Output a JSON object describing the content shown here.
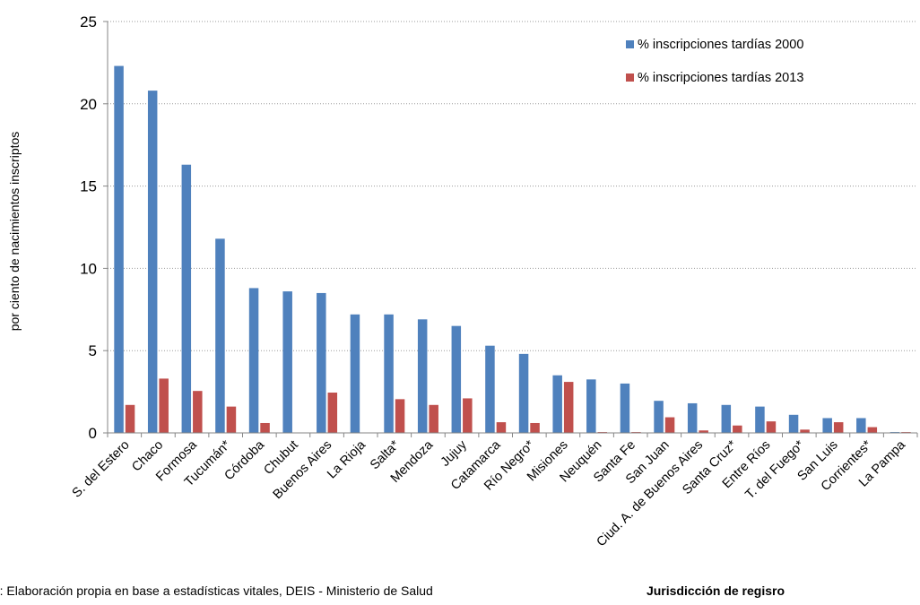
{
  "chart_data": {
    "type": "bar",
    "title": "",
    "xlabel": "Jurisdicción de regisro",
    "ylabel": "por ciento de nacimientos inscriptos",
    "ylim": [
      0,
      25
    ],
    "yticks": [
      0,
      5,
      10,
      15,
      20,
      25
    ],
    "grid": "horizontal dotted",
    "legend_position": "top-right",
    "categories": [
      "S. del Estero",
      "Chaco",
      "Formosa",
      "Tucumán*",
      "Córdoba",
      "Chubut",
      "Buenos Aires",
      "La Rioja",
      "Salta*",
      "Mendoza",
      "Jujuy",
      "Catamarca",
      "Río Negro*",
      "Misiones",
      "Neuquén",
      "Santa Fe",
      "San Juan",
      "Ciud. A. de Buenos Aires",
      "Santa Cruz*",
      "Entre Ríos",
      "T. del Fuego*",
      "San Luis",
      "Corrientes*",
      "La Pampa"
    ],
    "series": [
      {
        "name": "% inscripciones tardías 2000",
        "color": "#4F81BD",
        "values": [
          22.3,
          20.8,
          16.3,
          11.8,
          8.8,
          8.6,
          8.5,
          7.2,
          7.2,
          6.9,
          6.5,
          5.3,
          4.8,
          3.5,
          3.25,
          3.0,
          1.95,
          1.8,
          1.7,
          1.6,
          1.1,
          0.9,
          0.9,
          0.05
        ]
      },
      {
        "name": "% inscripciones tardías 2013",
        "color": "#C0504D",
        "values": [
          1.7,
          3.3,
          2.55,
          1.6,
          0.6,
          0.0,
          2.45,
          0.0,
          2.05,
          1.7,
          2.1,
          0.65,
          0.6,
          3.1,
          0.05,
          0.05,
          0.95,
          0.15,
          0.45,
          0.7,
          0.2,
          0.65,
          0.35,
          0.05
        ]
      }
    ],
    "source_note": "Fuente: Elaboración propia en base a estadísticas vitales, DEIS - Ministerio de Salud"
  }
}
